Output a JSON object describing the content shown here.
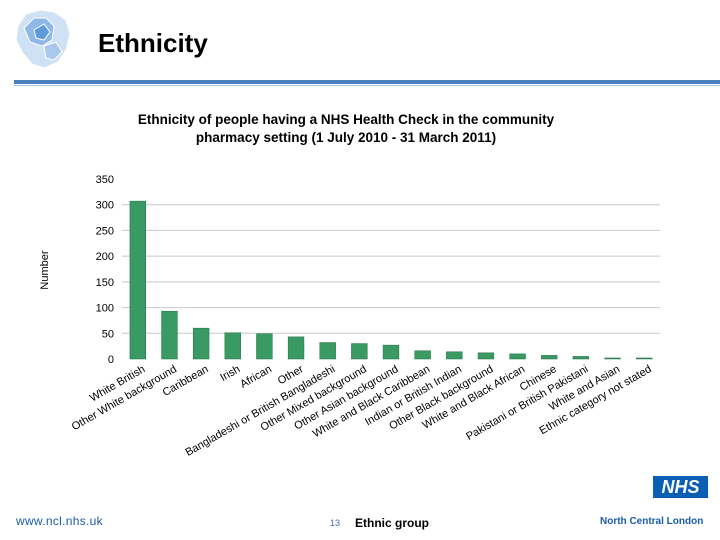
{
  "slide": {
    "title": "Ethnicity",
    "footer_url": "www.ncl.nhs.uk",
    "page_number": "13",
    "org_name": "North Central London",
    "nhs_logo_text": "NHS"
  },
  "colors": {
    "bar": "#3a9a64",
    "bar_edge": "#1e6d40",
    "accent_rule": "#4a7fc0",
    "footer_text": "#1a5ca8"
  },
  "chart_data": {
    "type": "bar",
    "title": "Ethnicity of people having a NHS Health Check in the community pharmacy setting (1 July 2010 - 31 March 2011)",
    "title_lines": [
      "Ethnicity of people having a NHS Health Check in the community",
      "pharmacy setting (1 July 2010 - 31 March 2011)"
    ],
    "xlabel": "Ethnic group",
    "ylabel": "Number",
    "ylim": [
      0,
      350
    ],
    "yticks": [
      0,
      50,
      100,
      150,
      200,
      250,
      300,
      350
    ],
    "grid": "horizontal",
    "categories": [
      "White British",
      "Other White background",
      "Caribbean",
      "Irish",
      "African",
      "Other",
      "Bangladeshi or British Bangladeshi",
      "Other Mixed background",
      "Other Asian background",
      "White and Black Caribbean",
      "Indian or British Indian",
      "Other Black background",
      "White and Black African",
      "Chinese",
      "Pakistani or British Pakistani",
      "White and Asian",
      "Ethnic category not stated"
    ],
    "values": [
      307,
      93,
      60,
      51,
      49,
      43,
      32,
      30,
      27,
      16,
      14,
      12,
      10,
      7,
      5,
      2,
      2
    ]
  }
}
